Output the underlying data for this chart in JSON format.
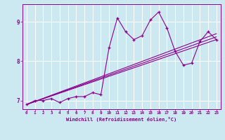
{
  "xlabel": "Windchill (Refroidissement éolien,°C)",
  "bg_color": "#cce8f0",
  "line_color": "#8b008b",
  "grid_color": "#ffffff",
  "xlim": [
    -0.5,
    23.5
  ],
  "ylim": [
    6.78,
    9.45
  ],
  "yticks": [
    7,
    8,
    9
  ],
  "xticks": [
    0,
    1,
    2,
    3,
    4,
    5,
    6,
    7,
    8,
    9,
    10,
    11,
    12,
    13,
    14,
    15,
    16,
    17,
    18,
    19,
    20,
    21,
    22,
    23
  ],
  "series1_x": [
    0,
    1,
    2,
    3,
    4,
    5,
    6,
    7,
    8,
    9,
    10,
    11,
    12,
    13,
    14,
    15,
    16,
    17,
    18,
    19,
    20,
    21,
    22,
    23
  ],
  "series1_y": [
    6.9,
    7.0,
    7.0,
    7.05,
    6.95,
    7.05,
    7.1,
    7.1,
    7.2,
    7.15,
    8.35,
    9.1,
    8.75,
    8.55,
    8.65,
    9.05,
    9.25,
    8.85,
    8.25,
    7.9,
    7.95,
    8.5,
    8.75,
    8.55
  ],
  "series2_x": [
    0,
    23
  ],
  "series2_y": [
    6.9,
    8.55
  ],
  "series3_x": [
    0,
    23
  ],
  "series3_y": [
    6.9,
    8.62
  ],
  "series4_x": [
    0,
    23
  ],
  "series4_y": [
    6.9,
    8.7
  ]
}
